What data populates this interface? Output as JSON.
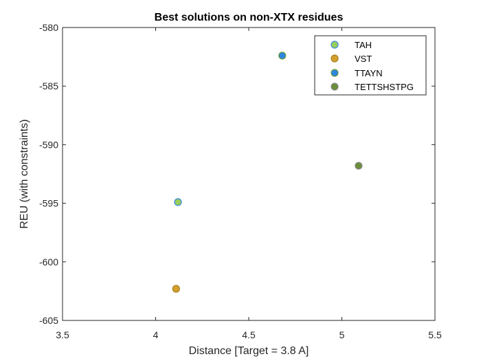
{
  "chart_data": {
    "type": "scatter",
    "title": "Best solutions on non-XTX residues",
    "xlabel": "Distance [Target = 3.8 A]",
    "ylabel": "REU (with constraints)",
    "xlim": [
      3.5,
      5.5
    ],
    "ylim": [
      -605,
      -580
    ],
    "xticks": [
      3.5,
      4,
      4.5,
      5,
      5.5
    ],
    "xtick_labels": [
      "3.5",
      "4",
      "4.5",
      "5",
      "5.5"
    ],
    "yticks": [
      -605,
      -600,
      -595,
      -590,
      -585,
      -580
    ],
    "ytick_labels": [
      "-605",
      "-600",
      "-595",
      "-590",
      "-585",
      "-580"
    ],
    "grid": false,
    "legend_position": "top-right",
    "series": [
      {
        "name": "TAH",
        "color": "#9ACD5A",
        "edge": "#3A8AE0",
        "points": [
          {
            "x": 4.12,
            "y": -594.9
          }
        ]
      },
      {
        "name": "VST",
        "color": "#D4A02C",
        "edge": "#A88020",
        "points": [
          {
            "x": 4.11,
            "y": -602.3
          }
        ]
      },
      {
        "name": "TTAYN",
        "color": "#2E86E0",
        "edge": "#6A9A3A",
        "points": [
          {
            "x": 4.68,
            "y": -582.4
          }
        ]
      },
      {
        "name": "TETTSHSTPG",
        "color": "#6B8E3A",
        "edge": "#8A8A8A",
        "points": [
          {
            "x": 5.09,
            "y": -591.8
          }
        ]
      }
    ]
  }
}
